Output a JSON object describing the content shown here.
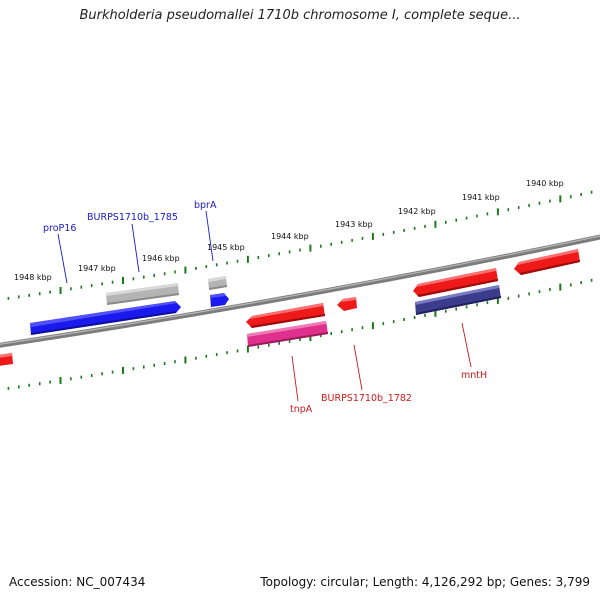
{
  "title": "Burkholderia pseudomallei 1710b chromosome I, complete seque...",
  "footer": {
    "accession": "Accession: NC_007434",
    "summary": "Topology: circular; Length: 4,126,292 bp; Genes: 3,799"
  },
  "colors": {
    "backbone": "#808080",
    "tick": "#1a7a1a",
    "forward_label": "#1a1acc",
    "reverse_label": "#cc1a1a",
    "gene_blue": "#1a1aee",
    "gene_gray": "#b4b4b4",
    "gene_red": "#ee1a1a",
    "gene_pink": "#e0308e",
    "gene_navy": "#3c3c8c"
  },
  "scale_labels": [
    "1948 kbp",
    "1947 kbp",
    "1946 kbp",
    "1945 kbp",
    "1944 kbp",
    "1943 kbp",
    "1942 kbp",
    "1941 kbp",
    "1940 kbp"
  ],
  "forward_features": [
    {
      "name": "proP16",
      "color": "gene_blue"
    },
    {
      "name": "BURPS1710b_1785",
      "color": "gene_gray"
    },
    {
      "name": "bprA",
      "color": "gene_blue"
    },
    {
      "name": "",
      "color": "gene_gray"
    }
  ],
  "reverse_features": [
    {
      "name": "tnpA",
      "color": "gene_red"
    },
    {
      "name": "",
      "color": "gene_pink"
    },
    {
      "name": "BURPS1710b_1782",
      "color": "gene_red"
    },
    {
      "name": "mntH",
      "color": "gene_red"
    },
    {
      "name": "",
      "color": "gene_navy"
    },
    {
      "name": "",
      "color": "gene_red"
    },
    {
      "name": "",
      "color": "gene_red"
    }
  ]
}
